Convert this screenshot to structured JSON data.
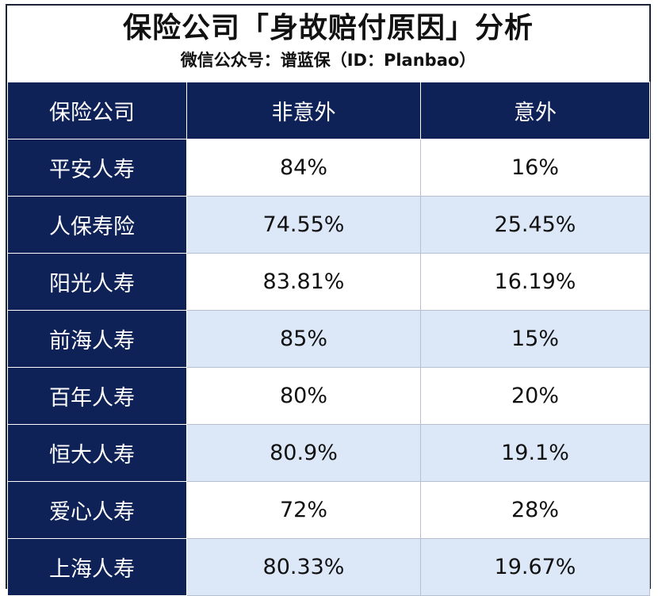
{
  "title": "保险公司「身故赔付原因」分析",
  "subtitle": "微信公众号：谱蓝保（ID：Planbao）",
  "headers": [
    "保险公司",
    "非意外",
    "意外"
  ],
  "rows": [
    {
      "company": "平安人寿",
      "non_accident": "84%",
      "accident": "16%"
    },
    {
      "company": "人保寿险",
      "non_accident": "74.55%",
      "accident": "25.45%"
    },
    {
      "company": "阳光人寿",
      "non_accident": "83.81%",
      "accident": "16.19%"
    },
    {
      "company": "前海人寿",
      "non_accident": "85%",
      "accident": "15%"
    },
    {
      "company": "百年人寿",
      "non_accident": "80%",
      "accident": "20%"
    },
    {
      "company": "恒大人寿",
      "non_accident": "80.9%",
      "accident": "19.1%"
    },
    {
      "company": "爱心人寿",
      "non_accident": "72%",
      "accident": "28%"
    },
    {
      "company": "上海人寿",
      "non_accident": "80.33%",
      "accident": "19.67%"
    }
  ],
  "colors": {
    "header_bg": "#0f2257",
    "alt_row_bg": "#dce8f8"
  }
}
